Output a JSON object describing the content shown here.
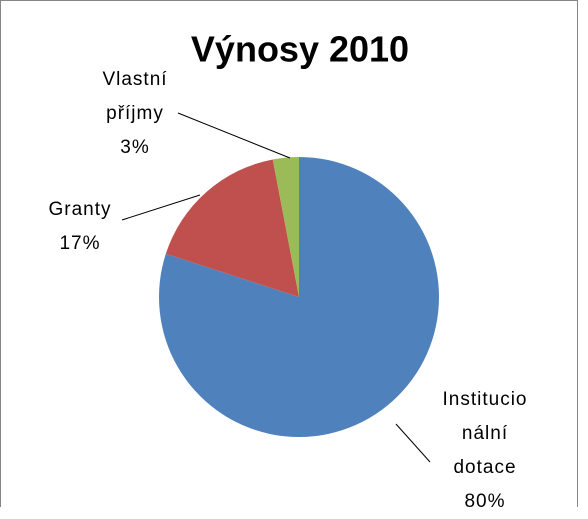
{
  "chart_data": {
    "type": "pie",
    "title": "Výnosy 2010",
    "categories": [
      "Institucionální dotace",
      "Granty",
      "Vlastní příjmy"
    ],
    "values": [
      80,
      17,
      3
    ],
    "value_labels": [
      "80%",
      "17%",
      "3%"
    ],
    "colors": [
      "#4f81bd",
      "#c0504d",
      "#9bbb59"
    ]
  }
}
